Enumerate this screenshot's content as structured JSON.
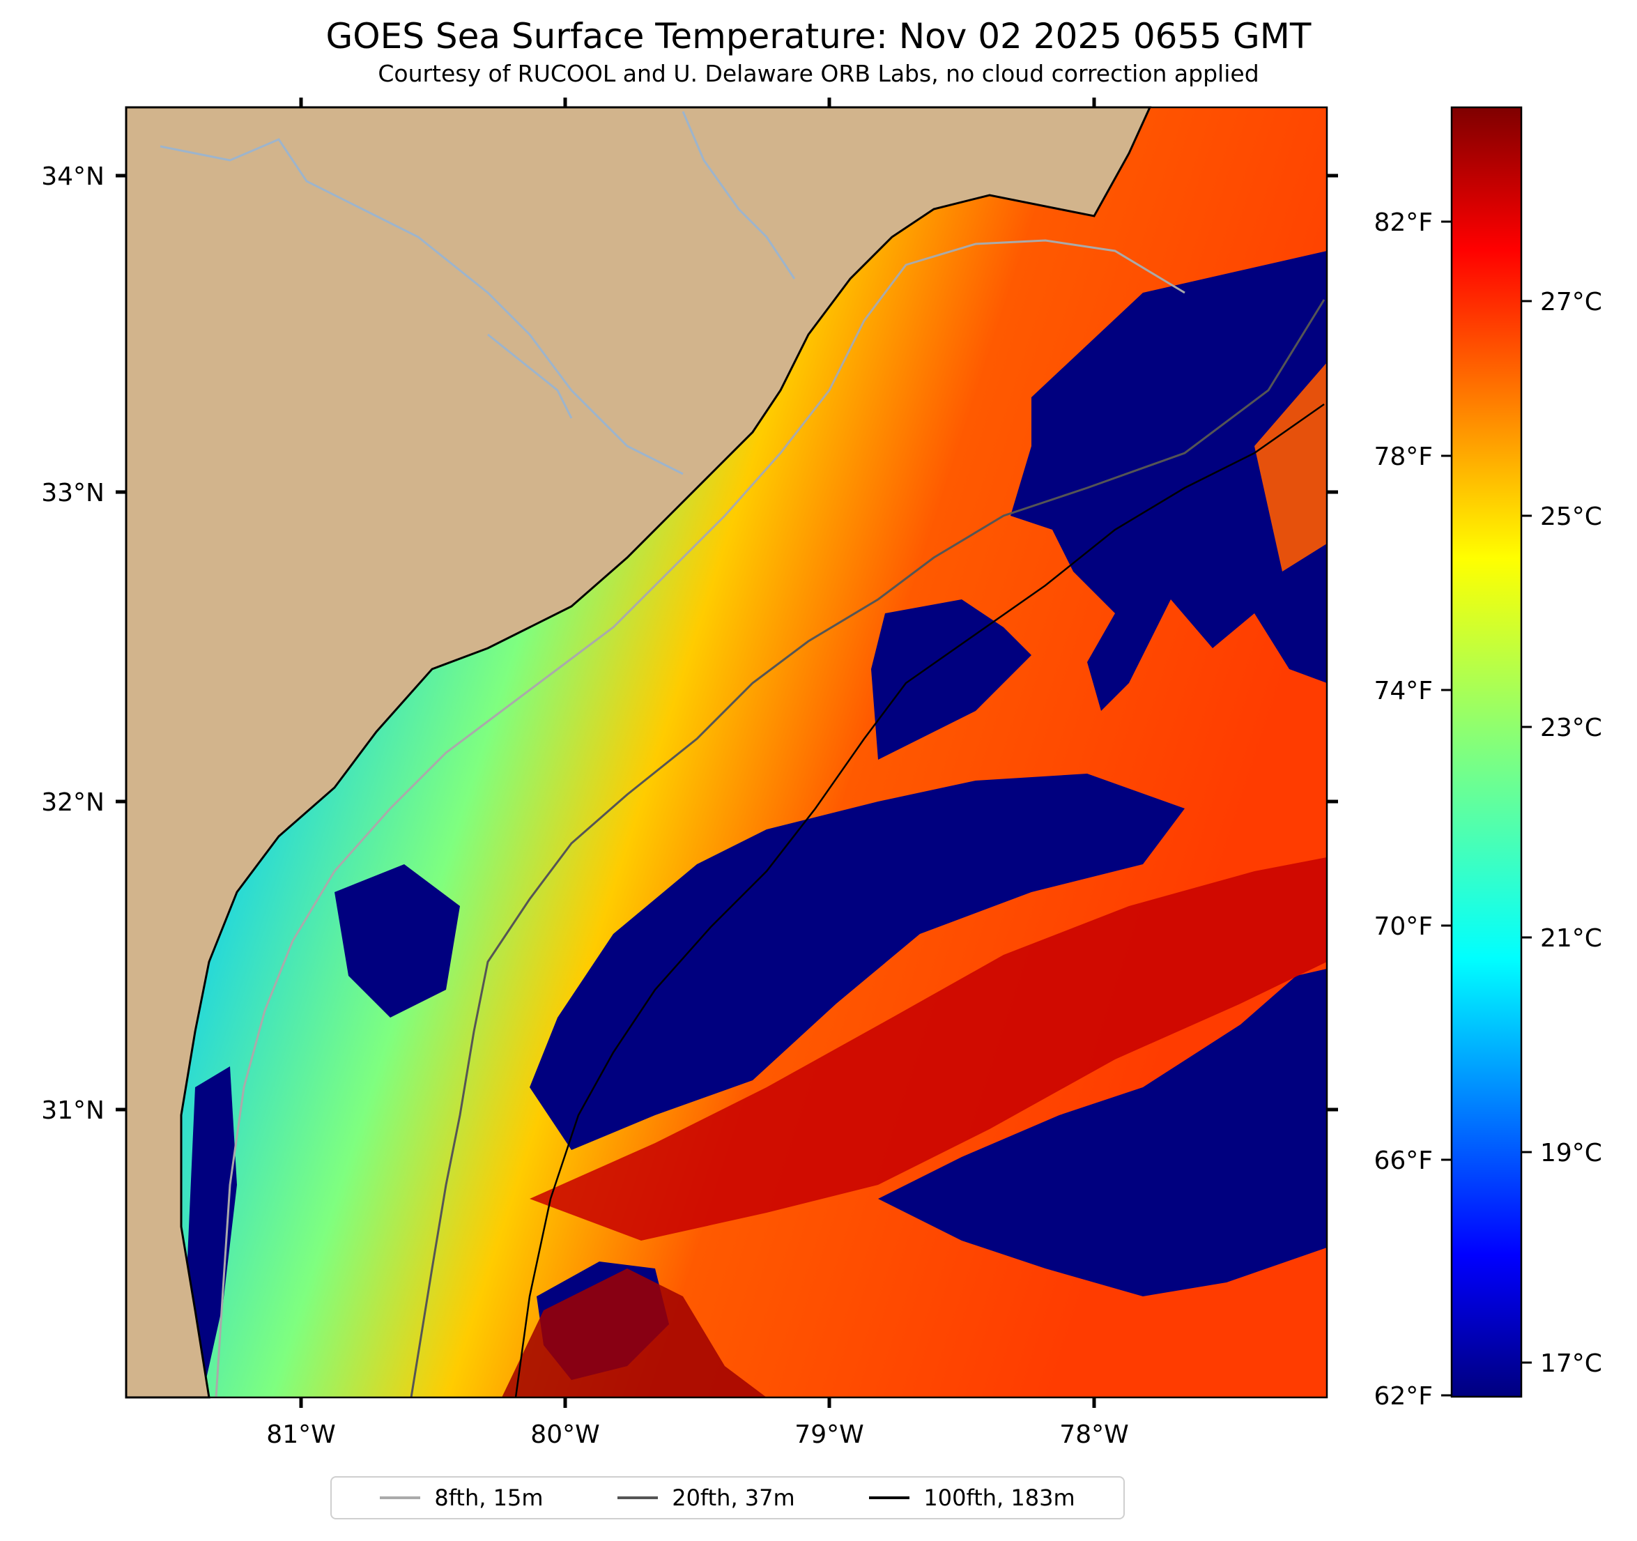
{
  "title": "GOES Sea Surface Temperature: Nov 02 2025 0655 GMT",
  "subtitle": "Courtesy of RUCOOL and U. Delaware ORB Labs, no cloud correction applied",
  "colors": {
    "land": "#d2b48c",
    "coast": "#000000",
    "river": "#9db4cc",
    "cold": "#00007f",
    "hot": "#7f0000"
  },
  "map": {
    "lat_ticks": [
      "34°N",
      "33°N",
      "32°N",
      "31°N"
    ],
    "lon_ticks": [
      "81°W",
      "80°W",
      "79°W",
      "78°W"
    ]
  },
  "colorbar": {
    "celsius_ticks": [
      "27°C",
      "25°C",
      "23°C",
      "21°C",
      "19°C",
      "17°C"
    ],
    "fahrenheit_ticks": [
      "82°F",
      "78°F",
      "74°F",
      "70°F",
      "66°F",
      "62°F"
    ],
    "colormap": "jet"
  },
  "legend": [
    {
      "label": "8fth, 15m",
      "color": "#aaaaaa"
    },
    {
      "label": "20fth, 37m",
      "color": "#555555"
    },
    {
      "label": "100fth, 183m",
      "color": "#000000"
    }
  ]
}
